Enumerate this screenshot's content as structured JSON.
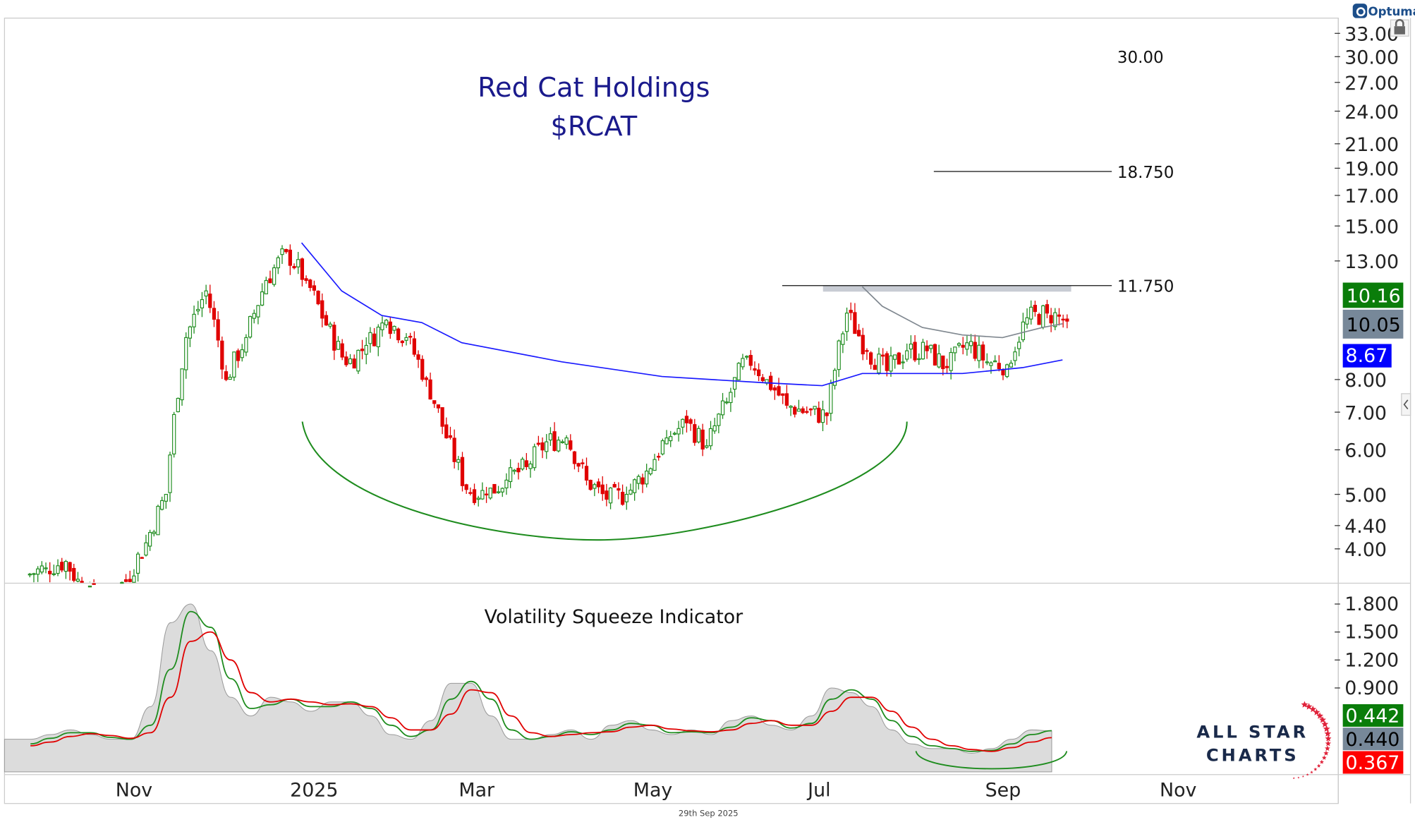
{
  "title": {
    "line1": "Red Cat Holdings",
    "line2": "$RCAT"
  },
  "brand": {
    "optuma": "Optuma",
    "allstar_line1": "ALL STAR",
    "allstar_line2": "CHARTS"
  },
  "footer_date": "29th Sep 2025",
  "colors": {
    "up": "#1e8c1e",
    "down": "#e00000",
    "ma_long": "#1a1aff",
    "ma_short": "#808890",
    "arc": "#1e8c1e",
    "title": "#1a1a8c"
  },
  "chart_data": [
    {
      "type": "candlestick",
      "scale": "log",
      "x_ticks": [
        "Nov",
        "2025",
        "Mar",
        "May",
        "Jul",
        "Sep",
        "Nov"
      ],
      "y_ticks": [
        "33.00",
        "30.00",
        "27.00",
        "24.00",
        "21.00",
        "19.00",
        "17.00",
        "15.00",
        "13.00",
        "8.00",
        "7.00",
        "6.00",
        "5.00",
        "4.40",
        "4.00"
      ],
      "weekly_dates": [
        "2024-10-07",
        "2024-10-14",
        "2024-10-21",
        "2024-10-28",
        "2024-11-04",
        "2024-11-11",
        "2024-11-18",
        "2024-11-25",
        "2024-12-02",
        "2024-12-09",
        "2024-12-16",
        "2024-12-23",
        "2024-12-30",
        "2025-01-06",
        "2025-01-13",
        "2025-01-20",
        "2025-01-27",
        "2025-02-03",
        "2025-02-10",
        "2025-02-17",
        "2025-02-24",
        "2025-03-03",
        "2025-03-10",
        "2025-03-17",
        "2025-03-24",
        "2025-03-31",
        "2025-04-07",
        "2025-04-14",
        "2025-04-21",
        "2025-04-28",
        "2025-05-05",
        "2025-05-12",
        "2025-05-19",
        "2025-05-26",
        "2025-06-02",
        "2025-06-09",
        "2025-06-16",
        "2025-06-23",
        "2025-06-30",
        "2025-07-07",
        "2025-07-14",
        "2025-07-21",
        "2025-07-28",
        "2025-08-04",
        "2025-08-11",
        "2025-08-18",
        "2025-08-25",
        "2025-09-01",
        "2025-09-08",
        "2025-09-15",
        "2025-09-22",
        "2025-09-29"
      ],
      "close": [
        3.7,
        3.8,
        3.3,
        3.3,
        3.5,
        4.1,
        5.0,
        9.5,
        11.5,
        8.0,
        9.5,
        12.0,
        13.5,
        12.0,
        10.0,
        8.5,
        9.2,
        10.2,
        9.5,
        8.0,
        6.3,
        5.1,
        5.0,
        5.3,
        5.6,
        6.2,
        6.3,
        5.3,
        4.9,
        5.0,
        5.5,
        6.3,
        6.7,
        6.1,
        7.3,
        8.8,
        8.0,
        7.2,
        7.0,
        6.9,
        10.5,
        9.0,
        8.3,
        9.0,
        9.0,
        8.4,
        9.3,
        8.6,
        8.5,
        10.3,
        10.5,
        10.16
      ],
      "ma_long": {
        "dates": [
          "2025-01-06",
          "2025-01-20",
          "2025-02-03",
          "2025-02-17",
          "2025-03-03",
          "2025-04-07",
          "2025-05-12",
          "2025-06-16",
          "2025-07-07",
          "2025-07-21",
          "2025-08-25",
          "2025-09-15",
          "2025-09-29"
        ],
        "values": [
          14.0,
          11.5,
          10.4,
          10.1,
          9.3,
          8.6,
          8.1,
          7.9,
          7.8,
          8.2,
          8.2,
          8.4,
          8.67
        ]
      },
      "ma_short": {
        "dates": [
          "2025-07-21",
          "2025-07-28",
          "2025-08-11",
          "2025-08-25",
          "2025-09-08",
          "2025-09-22",
          "2025-09-29"
        ],
        "values": [
          11.7,
          10.8,
          9.9,
          9.6,
          9.5,
          9.9,
          10.05
        ]
      },
      "levels": [
        {
          "value": 30.0,
          "label": "30.00"
        },
        {
          "value": 18.75,
          "label": "18.750",
          "from": "2025-08-15"
        },
        {
          "value": 11.75,
          "label": "11.750",
          "from": "2025-06-23"
        }
      ],
      "last_values": {
        "close": "10.16",
        "ma_short": "10.05",
        "ma_long": "8.67"
      }
    },
    {
      "type": "area",
      "title": "Volatility Squeeze Indicator",
      "y_ticks": [
        "1.800",
        "1.500",
        "1.200",
        "0.900"
      ],
      "ylim": [
        0,
        2.0
      ],
      "values": [
        0.35,
        0.4,
        0.45,
        0.4,
        0.35,
        0.35,
        0.7,
        1.6,
        1.8,
        1.3,
        0.8,
        0.6,
        0.8,
        0.75,
        0.65,
        0.75,
        0.75,
        0.6,
        0.4,
        0.35,
        0.55,
        0.95,
        0.95,
        0.6,
        0.35,
        0.35,
        0.4,
        0.45,
        0.35,
        0.5,
        0.55,
        0.45,
        0.4,
        0.45,
        0.4,
        0.55,
        0.6,
        0.5,
        0.45,
        0.6,
        0.9,
        0.85,
        0.7,
        0.45,
        0.3,
        0.25,
        0.25,
        0.2,
        0.25,
        0.35,
        0.45,
        0.44
      ],
      "green": [
        0.3,
        0.36,
        0.42,
        0.42,
        0.37,
        0.35,
        0.5,
        1.1,
        1.72,
        1.55,
        1.0,
        0.68,
        0.72,
        0.78,
        0.7,
        0.7,
        0.75,
        0.68,
        0.5,
        0.38,
        0.45,
        0.78,
        0.97,
        0.78,
        0.45,
        0.35,
        0.38,
        0.43,
        0.4,
        0.45,
        0.52,
        0.5,
        0.42,
        0.43,
        0.42,
        0.48,
        0.58,
        0.55,
        0.47,
        0.52,
        0.78,
        0.88,
        0.78,
        0.55,
        0.38,
        0.28,
        0.25,
        0.22,
        0.23,
        0.3,
        0.4,
        0.442
      ],
      "red": [
        0.28,
        0.32,
        0.38,
        0.41,
        0.39,
        0.36,
        0.42,
        0.8,
        1.4,
        1.5,
        1.2,
        0.85,
        0.75,
        0.78,
        0.75,
        0.72,
        0.73,
        0.7,
        0.58,
        0.45,
        0.45,
        0.62,
        0.88,
        0.85,
        0.6,
        0.42,
        0.38,
        0.4,
        0.42,
        0.43,
        0.48,
        0.5,
        0.46,
        0.44,
        0.43,
        0.45,
        0.52,
        0.55,
        0.5,
        0.5,
        0.65,
        0.8,
        0.8,
        0.65,
        0.48,
        0.35,
        0.28,
        0.24,
        0.22,
        0.26,
        0.32,
        0.367
      ],
      "last_values": {
        "green": "0.442",
        "gray": "0.440",
        "red": "0.367"
      }
    }
  ]
}
